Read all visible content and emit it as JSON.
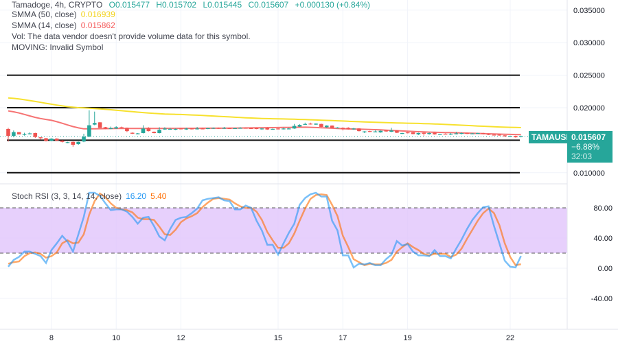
{
  "header": {
    "symbol_line": "Tamadoge, 4h, CRYPTO",
    "open": "O0.015477",
    "high": "H0.015702",
    "low": "L0.015445",
    "close": "C0.015607",
    "change": "+0.000130 (+0.84%)"
  },
  "indicators": {
    "smma50": {
      "label": "SMMA (50, close)",
      "value": "0.016939",
      "color": "#f7e12e"
    },
    "smma14": {
      "label": "SMMA (14, close)",
      "value": "0.015862",
      "color": "#f45b5b"
    },
    "vol": {
      "label": "Vol: The data vendor doesn't provide volume data for this symbol."
    },
    "moving": {
      "label": "MOVING: Invalid Symbol"
    }
  },
  "price_axis": {
    "ticks": [
      "0.035000",
      "0.030000",
      "0.025000",
      "0.020000",
      "0.010000"
    ],
    "tick_values": [
      0.035,
      0.03,
      0.025,
      0.02,
      0.01
    ],
    "horizontal_levels": [
      0.025,
      0.02,
      0.015,
      0.01
    ]
  },
  "price_tag": {
    "symbol": "TAMAUSD",
    "price": "0.015607",
    "change_pct": "−6.88%",
    "countdown": "32:03",
    "color": "#26a69a"
  },
  "time_axis": {
    "labels": [
      "8",
      "10",
      "12",
      "15",
      "17",
      "19",
      "22"
    ],
    "label_candle_index": [
      8,
      20,
      32,
      50,
      62,
      74,
      93
    ]
  },
  "colors": {
    "up": "#26a69a",
    "down": "#ef5350",
    "stoch_k": "#2196f3",
    "stoch_d": "#ff6d00",
    "band": "#e1c4fb"
  },
  "candles": [
    [
      0.01673,
      0.0169,
      0.0148,
      0.01567
    ],
    [
      0.01567,
      0.0165,
      0.01545,
      0.01625
    ],
    [
      0.01625,
      0.01625,
      0.0159,
      0.0159
    ],
    [
      0.0159,
      0.01615,
      0.0157,
      0.01595
    ],
    [
      0.01595,
      0.0162,
      0.0159,
      0.01605
    ],
    [
      0.0161,
      0.01615,
      0.01535,
      0.0155
    ],
    [
      0.01545,
      0.01545,
      0.0151,
      0.0153
    ],
    [
      0.0153,
      0.01535,
      0.0148,
      0.0149
    ],
    [
      0.0149,
      0.0153,
      0.01485,
      0.01525
    ],
    [
      0.01525,
      0.0153,
      0.01485,
      0.01495
    ],
    [
      0.01495,
      0.015,
      0.01465,
      0.01475
    ],
    [
      0.0146,
      0.01475,
      0.01455,
      0.0147
    ],
    [
      0.01475,
      0.0148,
      0.014,
      0.0143
    ],
    [
      0.0144,
      0.0148,
      0.0143,
      0.01475
    ],
    [
      0.0148,
      0.016,
      0.0147,
      0.01555
    ],
    [
      0.01555,
      0.0196,
      0.0155,
      0.0173
    ],
    [
      0.0174,
      0.0194,
      0.0173,
      0.01765
    ],
    [
      0.01775,
      0.0178,
      0.0169,
      0.0169
    ],
    [
      0.017,
      0.01705,
      0.0167,
      0.01675
    ],
    [
      0.0168,
      0.0171,
      0.0167,
      0.01685
    ],
    [
      0.0168,
      0.01715,
      0.01675,
      0.017
    ],
    [
      0.017,
      0.0171,
      0.0169,
      0.01695
    ],
    [
      0.0169,
      0.01695,
      0.01625,
      0.0164
    ],
    [
      0.01615,
      0.0162,
      0.01595,
      0.016
    ],
    [
      0.016,
      0.0161,
      0.01598,
      0.01605
    ],
    [
      0.0161,
      0.0173,
      0.01605,
      0.0168
    ],
    [
      0.0169,
      0.017,
      0.01635,
      0.0164
    ],
    [
      0.0163,
      0.01635,
      0.01605,
      0.0161
    ],
    [
      0.0161,
      0.017,
      0.01605,
      0.0166
    ],
    [
      0.01665,
      0.017,
      0.0166,
      0.0168
    ],
    [
      0.0167,
      0.0169,
      0.0166,
      0.01675
    ],
    [
      0.01665,
      0.0168,
      0.01655,
      0.01675
    ],
    [
      0.0168,
      0.01685,
      0.01665,
      0.0167
    ],
    [
      0.01665,
      0.0169,
      0.0166,
      0.0168
    ],
    [
      0.0168,
      0.01685,
      0.01665,
      0.0167
    ],
    [
      0.0167,
      0.01705,
      0.01665,
      0.0168
    ],
    [
      0.0168,
      0.0169,
      0.0167,
      0.01675
    ],
    [
      0.01675,
      0.0169,
      0.0167,
      0.01685
    ],
    [
      0.0168,
      0.01695,
      0.01675,
      0.0169
    ],
    [
      0.0169,
      0.01695,
      0.01675,
      0.0168
    ],
    [
      0.0168,
      0.01705,
      0.01675,
      0.0169
    ],
    [
      0.01685,
      0.0169,
      0.01675,
      0.0168
    ],
    [
      0.0168,
      0.0169,
      0.01675,
      0.01685
    ],
    [
      0.01685,
      0.017,
      0.0168,
      0.0169
    ],
    [
      0.0169,
      0.01695,
      0.0168,
      0.01685
    ],
    [
      0.01685,
      0.0169,
      0.01675,
      0.0168
    ],
    [
      0.01685,
      0.0169,
      0.0167,
      0.01675
    ],
    [
      0.01675,
      0.0169,
      0.0166,
      0.0168
    ],
    [
      0.0169,
      0.017,
      0.0166,
      0.01665
    ],
    [
      0.01665,
      0.0168,
      0.0166,
      0.01675
    ],
    [
      0.0168,
      0.01685,
      0.01665,
      0.0167
    ],
    [
      0.0167,
      0.0169,
      0.01665,
      0.0168
    ],
    [
      0.01675,
      0.0169,
      0.0167,
      0.0168
    ],
    [
      0.0168,
      0.0175,
      0.01675,
      0.0172
    ],
    [
      0.0171,
      0.01745,
      0.01705,
      0.01735
    ],
    [
      0.0174,
      0.0177,
      0.01735,
      0.0175
    ],
    [
      0.01755,
      0.0177,
      0.0174,
      0.01745
    ],
    [
      0.0174,
      0.0176,
      0.01735,
      0.01755
    ],
    [
      0.0175,
      0.01755,
      0.017,
      0.01705
    ],
    [
      0.017,
      0.0173,
      0.0169,
      0.01725
    ],
    [
      0.01725,
      0.0173,
      0.01685,
      0.0169
    ],
    [
      0.0169,
      0.017,
      0.01685,
      0.01695
    ],
    [
      0.0169,
      0.017,
      0.0165,
      0.0167
    ],
    [
      0.0169,
      0.017,
      0.01665,
      0.0167
    ],
    [
      0.0167,
      0.0169,
      0.0166,
      0.0168
    ],
    [
      0.0168,
      0.01685,
      0.01635,
      0.0164
    ],
    [
      0.01625,
      0.0164,
      0.0161,
      0.01635
    ],
    [
      0.0164,
      0.01645,
      0.01625,
      0.0163
    ],
    [
      0.0163,
      0.0165,
      0.01625,
      0.01635
    ],
    [
      0.0162,
      0.0165,
      0.01615,
      0.01645
    ],
    [
      0.0165,
      0.01655,
      0.0163,
      0.01635
    ],
    [
      0.0163,
      0.0169,
      0.01625,
      0.0165
    ],
    [
      0.0165,
      0.01655,
      0.0161,
      0.01615
    ],
    [
      0.016,
      0.01615,
      0.01595,
      0.0161
    ],
    [
      0.0162,
      0.01625,
      0.01605,
      0.0161
    ],
    [
      0.0162,
      0.01625,
      0.0159,
      0.01595
    ],
    [
      0.0159,
      0.01615,
      0.0158,
      0.0161
    ],
    [
      0.01615,
      0.0162,
      0.0157,
      0.016
    ],
    [
      0.01595,
      0.0162,
      0.01585,
      0.0161
    ],
    [
      0.01615,
      0.0162,
      0.01585,
      0.0159
    ],
    [
      0.0159,
      0.016,
      0.01585,
      0.01595
    ],
    [
      0.016,
      0.01605,
      0.0159,
      0.01595
    ],
    [
      0.0159,
      0.0161,
      0.0158,
      0.016
    ],
    [
      0.01595,
      0.0163,
      0.0159,
      0.01605
    ],
    [
      0.016,
      0.0162,
      0.0159,
      0.0161
    ],
    [
      0.0161,
      0.01615,
      0.01595,
      0.016
    ],
    [
      0.016,
      0.0161,
      0.01595,
      0.01605
    ],
    [
      0.01605,
      0.01615,
      0.016,
      0.0161
    ],
    [
      0.0161,
      0.01615,
      0.0159,
      0.01595
    ],
    [
      0.01595,
      0.016,
      0.0158,
      0.01585
    ],
    [
      0.01585,
      0.0159,
      0.01575,
      0.0158
    ],
    [
      0.01585,
      0.0159,
      0.0157,
      0.01575
    ],
    [
      0.01575,
      0.0158,
      0.01555,
      0.0156
    ],
    [
      0.0156,
      0.0157,
      0.01555,
      0.01565
    ],
    [
      0.01565,
      0.0157,
      0.0154,
      0.01545
    ],
    [
      0.015477,
      0.015702,
      0.015445,
      0.015607
    ]
  ],
  "smma50_points": [
    [
      0,
      0.0215
    ],
    [
      13,
      0.02
    ],
    [
      30,
      0.019
    ],
    [
      49,
      0.0183
    ],
    [
      75,
      0.0176
    ],
    [
      95,
      0.016939
    ]
  ],
  "smma14_points": [
    [
      0,
      0.0195
    ],
    [
      7,
      0.0182
    ],
    [
      14,
      0.01675
    ],
    [
      20,
      0.0168
    ],
    [
      40,
      0.01685
    ],
    [
      55,
      0.017
    ],
    [
      65,
      0.0167
    ],
    [
      80,
      0.0162
    ],
    [
      95,
      0.015862
    ]
  ],
  "stoch": {
    "label": "Stoch RSI (3, 3, 14, 14, close)",
    "k_value": "16.20",
    "d_value": "5.40",
    "ticks": [
      "80.00",
      "40.00",
      "0.00",
      "-40.00"
    ],
    "tick_values": [
      80,
      40,
      0,
      -40
    ],
    "upper_band": 80,
    "lower_band": 20,
    "k": [
      2,
      11,
      15,
      22,
      22,
      19,
      16,
      7,
      24,
      33,
      43,
      35,
      22,
      45,
      68,
      100,
      100,
      96,
      86,
      77,
      78,
      78,
      75,
      68,
      59,
      67,
      68,
      56,
      42,
      37,
      52,
      64,
      67,
      68,
      73,
      79,
      90,
      92,
      93,
      94,
      90,
      89,
      78,
      78,
      83,
      80,
      63,
      50,
      31,
      31,
      18,
      33,
      47,
      59,
      84,
      93,
      98,
      100,
      95,
      95,
      63,
      50,
      17,
      17,
      1,
      6,
      5,
      7,
      4,
      4,
      12,
      18,
      36,
      30,
      32,
      22,
      17,
      17,
      16,
      24,
      16,
      16,
      13,
      26,
      38,
      52,
      64,
      73,
      81,
      82,
      56,
      33,
      10,
      2,
      1,
      16.2
    ],
    "d": [
      6,
      8,
      9,
      16,
      20,
      21,
      19,
      14,
      16,
      21,
      33,
      37,
      33,
      34,
      45,
      71,
      89,
      99,
      94,
      86,
      80,
      78,
      77,
      74,
      67,
      65,
      65,
      64,
      55,
      45,
      44,
      51,
      61,
      66,
      69,
      73,
      81,
      87,
      92,
      93,
      92,
      91,
      86,
      82,
      80,
      80,
      75,
      64,
      48,
      37,
      27,
      27,
      33,
      46,
      63,
      79,
      92,
      97,
      98,
      97,
      84,
      69,
      43,
      28,
      12,
      8,
      4,
      6,
      5,
      5,
      7,
      11,
      22,
      28,
      33,
      28,
      24,
      19,
      17,
      19,
      19,
      19,
      15,
      18,
      26,
      39,
      51,
      63,
      73,
      79,
      73,
      57,
      33,
      15,
      4,
      5.4
    ]
  }
}
